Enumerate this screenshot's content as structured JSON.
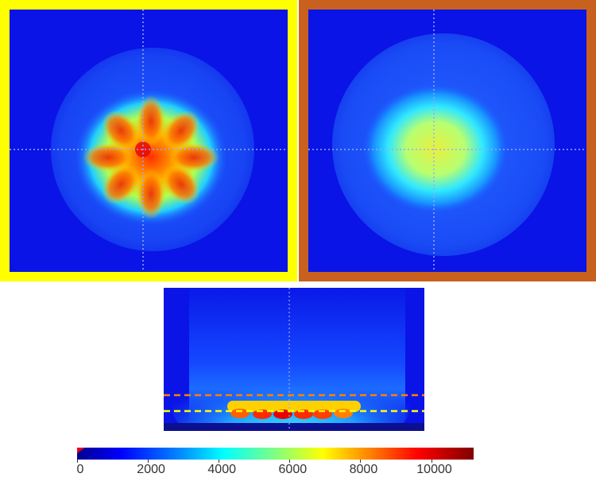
{
  "colormap": {
    "stops": [
      "#00008f",
      "#0000ff",
      "#0080ff",
      "#00ffff",
      "#80ff80",
      "#ffff00",
      "#ff8000",
      "#ff0000",
      "#800000"
    ],
    "range": [
      0,
      11200
    ],
    "ticks": [
      "0",
      "2000",
      "4000",
      "6000",
      "8000",
      "10000"
    ],
    "tick_values": [
      0,
      2000,
      4000,
      6000,
      8000,
      10000
    ]
  },
  "panels": {
    "left": {
      "frame_color": "#ffff00",
      "background": "#0a14e6"
    },
    "right": {
      "frame_color": "#c8611e",
      "background": "#0a14e6"
    },
    "bottom": {
      "background": "#0a14e6"
    }
  },
  "markers": {
    "upper_dashed_line_color": "#ff8000",
    "lower_dashed_line_color": "#ffff00",
    "crosshair_color": "#9aa6ff"
  }
}
